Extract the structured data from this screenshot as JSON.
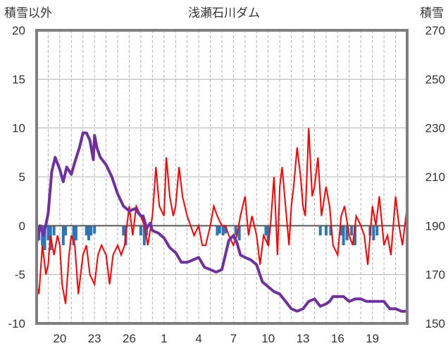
{
  "chart_data": {
    "type": "line",
    "title": "浅瀬石川ダム",
    "left_axis_label": "積雪以外",
    "right_axis_label": "積雪",
    "left_ylim": [
      -10,
      20
    ],
    "right_ylim": [
      150,
      270
    ],
    "left_ticks": [
      "20",
      "15",
      "10",
      "5",
      "0",
      "-5",
      "-10"
    ],
    "right_ticks": [
      "270",
      "250",
      "230",
      "210",
      "190",
      "170",
      "150"
    ],
    "x_range": [
      18,
      50
    ],
    "x_ticks": [
      {
        "label": "20",
        "x": 20
      },
      {
        "label": "23",
        "x": 23
      },
      {
        "label": "26",
        "x": 26
      },
      {
        "label": "1",
        "x": 29
      },
      {
        "label": "4",
        "x": 32
      },
      {
        "label": "7",
        "x": 35
      },
      {
        "label": "10",
        "x": 38
      },
      {
        "label": "13",
        "x": 41
      },
      {
        "label": "16",
        "x": 44
      },
      {
        "label": "19",
        "x": 47
      }
    ],
    "colors": {
      "snow_depth": "#7030a0",
      "temperature": "#ff0000",
      "precip_bars": "#2e75b6",
      "frame": "#7f7f7f",
      "grid": "#b0b0b0",
      "zero_line": "#595959"
    },
    "series": [
      {
        "key": "snow_depth",
        "axis": "right",
        "x": [
          18.0,
          18.3,
          18.6,
          19.0,
          19.3,
          19.6,
          20.0,
          20.3,
          20.6,
          21.0,
          21.3,
          21.7,
          22.0,
          22.3,
          22.6,
          22.9,
          23.0,
          23.2,
          23.5,
          24.0,
          24.5,
          25.0,
          25.5,
          26.0,
          26.5,
          27.0,
          27.2,
          27.5,
          27.8,
          28.0,
          28.5,
          29.0,
          29.5,
          30.0,
          30.5,
          31.0,
          31.5,
          32.0,
          32.5,
          33.0,
          33.5,
          34.0,
          34.3,
          34.6,
          35.0,
          35.3,
          35.6,
          36.0,
          36.5,
          37.0,
          37.5,
          38.0,
          38.5,
          39.0,
          39.5,
          40.0,
          40.5,
          41.0,
          41.5,
          42.0,
          42.5,
          43.0,
          43.3,
          43.6,
          44.0,
          44.5,
          45.0,
          45.5,
          46.0,
          46.5,
          47.0,
          47.5,
          48.0,
          48.5,
          49.0,
          49.5,
          50.0
        ],
        "y": [
          183,
          190,
          186,
          195,
          212,
          218,
          213,
          208,
          214,
          211,
          216,
          222,
          228,
          228,
          225,
          217,
          227,
          222,
          218,
          215,
          210,
          203,
          198,
          196,
          197,
          194,
          194,
          189,
          191,
          188,
          187,
          185,
          181,
          179,
          175,
          175,
          176,
          177,
          173,
          172,
          171,
          172,
          178,
          184,
          186,
          183,
          178,
          177,
          176,
          174,
          167,
          165,
          163,
          162,
          159,
          156,
          155,
          156,
          159,
          160,
          157,
          158,
          159,
          161,
          161,
          161,
          159,
          160,
          160,
          159,
          159,
          159,
          159,
          156,
          156,
          155,
          155
        ]
      },
      {
        "key": "temperature",
        "axis": "left",
        "x": [
          18.0,
          18.2,
          18.5,
          18.8,
          19.0,
          19.2,
          19.5,
          19.8,
          20.0,
          20.2,
          20.5,
          20.8,
          21.0,
          21.3,
          21.6,
          22.0,
          22.3,
          22.6,
          23.0,
          23.3,
          23.6,
          24.0,
          24.3,
          24.6,
          25.0,
          25.3,
          25.6,
          26.0,
          26.3,
          26.6,
          27.0,
          27.3,
          27.6,
          28.0,
          28.3,
          28.6,
          29.0,
          29.2,
          29.5,
          29.8,
          30.0,
          30.3,
          30.6,
          31.0,
          31.3,
          31.6,
          32.0,
          32.3,
          32.6,
          33.0,
          33.3,
          33.6,
          34.0,
          34.3,
          34.6,
          35.0,
          35.3,
          35.6,
          36.0,
          36.3,
          36.6,
          37.0,
          37.3,
          37.6,
          38.0,
          38.2,
          38.5,
          38.8,
          39.0,
          39.2,
          39.5,
          39.8,
          40.0,
          40.2,
          40.5,
          40.8,
          41.0,
          41.2,
          41.5,
          41.8,
          42.0,
          42.3,
          42.6,
          43.0,
          43.3,
          43.6,
          44.0,
          44.3,
          44.6,
          45.0,
          45.3,
          45.6,
          46.0,
          46.3,
          46.6,
          47.0,
          47.3,
          47.6,
          48.0,
          48.3,
          48.6,
          49.0,
          49.3,
          49.6,
          50.0
        ],
        "y": [
          -6,
          -7,
          -2,
          -5,
          -4,
          -1,
          -3,
          -1,
          -2,
          -6,
          -8,
          -3,
          -1,
          -2,
          -7,
          -3,
          -2,
          -5,
          -6,
          -3,
          -2,
          -3,
          -6,
          -3,
          -2,
          -3,
          -2,
          2,
          -1,
          2,
          1,
          0,
          -2,
          1,
          6,
          2,
          1,
          7,
          3,
          1,
          2,
          6,
          3,
          1,
          0,
          -1,
          0,
          -2,
          -2,
          0,
          2,
          1,
          0,
          0,
          -1,
          -2,
          -1,
          1,
          3,
          -1,
          1,
          -1,
          -4,
          -1,
          -2,
          0,
          5,
          -3,
          4,
          6,
          2,
          -2,
          2,
          4,
          8,
          5,
          2,
          1,
          10,
          3,
          4,
          7,
          1,
          4,
          2,
          -2,
          -3,
          1,
          2,
          -1,
          -2,
          1,
          0,
          -1,
          -4,
          2,
          0,
          3,
          -2,
          -1,
          -3,
          3,
          0,
          -2,
          2
        ]
      },
      {
        "key": "precip_bars",
        "axis": "left",
        "x": [
          18.0,
          18.2,
          18.5,
          18.7,
          19.0,
          19.2,
          19.5,
          20.3,
          20.5,
          21.2,
          21.4,
          22.3,
          22.5,
          22.7,
          23.0,
          25.5,
          25.7,
          27.0,
          27.3,
          27.5,
          33.6,
          33.8,
          34.1,
          34.3,
          35.2,
          35.5,
          37.8,
          38.0,
          42.5,
          43.0,
          43.4,
          44.3,
          44.5,
          44.8,
          45.2,
          45.5,
          46.8,
          47.1,
          47.4
        ],
        "y": [
          -4,
          -1.5,
          -2,
          -2.5,
          -1.5,
          -2.5,
          -1,
          -2,
          -1,
          -2,
          -1.5,
          -1,
          -1.5,
          -1,
          -0.8,
          -1,
          -2,
          -1,
          -2,
          -1,
          -1,
          -0.8,
          -1,
          -0.8,
          -1,
          -1.5,
          -1,
          -2,
          -1,
          -1,
          -1,
          -1,
          -2,
          -1.5,
          -1,
          -2,
          -1,
          -1.5,
          -1
        ]
      }
    ]
  }
}
